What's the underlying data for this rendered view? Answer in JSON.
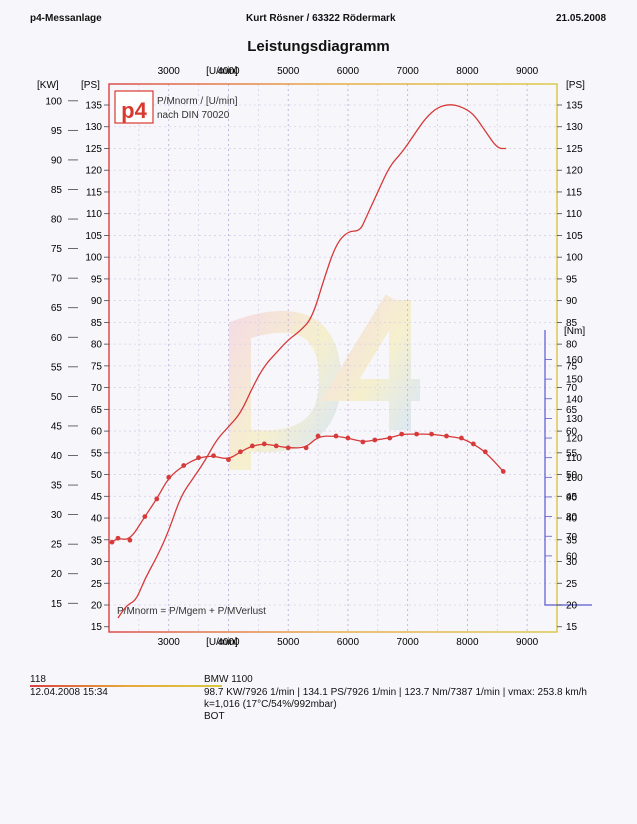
{
  "header": {
    "left": "p4-Messanlage",
    "center": "Kurt Rösner  /  63322 Rödermark",
    "right": "21.05.2008"
  },
  "chart_data": {
    "type": "line",
    "title": "Leistungsdiagramm",
    "x_unit": "[U/min]",
    "x_ticks": [
      3000,
      4000,
      5000,
      6000,
      7000,
      8000,
      9000
    ],
    "xlim": [
      2000,
      9500
    ],
    "kw_unit": "[KW]",
    "kw_ticks": [
      15,
      20,
      25,
      30,
      35,
      40,
      45,
      50,
      55,
      60,
      65,
      70,
      75,
      80,
      85,
      90,
      95,
      100
    ],
    "ps_unit": "[PS]",
    "ps_ticks": [
      15,
      20,
      25,
      30,
      35,
      40,
      45,
      50,
      55,
      60,
      65,
      70,
      75,
      80,
      85,
      90,
      95,
      100,
      105,
      110,
      115,
      120,
      125,
      130,
      135
    ],
    "ylim_ps": [
      15,
      140
    ],
    "nm_unit": "[Nm]",
    "nm_ticks": [
      60,
      70,
      80,
      90,
      100,
      110,
      120,
      130,
      140,
      150,
      160
    ],
    "ylim_nm": [
      35,
      175
    ],
    "legend_lines": [
      "P/Mnorm / [U/min]",
      "nach DIN 70020"
    ],
    "formula": "P/Mnorm = P/Mgem + P/MVerlust",
    "logo": {
      "text": "p4",
      "color": "#d9382e"
    },
    "series": [
      {
        "name": "P/Mnorm",
        "axis": "ps",
        "color": "#d63a3a",
        "x": [
          2150,
          2300,
          2450,
          2600,
          2800,
          3000,
          3200,
          3400,
          3600,
          3800,
          4000,
          4200,
          4400,
          4600,
          4800,
          5000,
          5200,
          5400,
          5600,
          5800,
          6000,
          6200,
          6300,
          6500,
          6700,
          6900,
          7100,
          7300,
          7500,
          7700,
          7900,
          8100,
          8300,
          8500,
          8650
        ],
        "y": [
          17,
          20,
          21,
          26,
          31,
          37,
          45,
          49,
          53,
          58,
          61,
          64,
          70,
          75,
          78,
          81,
          83,
          86,
          95,
          103,
          106,
          106,
          109,
          115,
          121,
          124,
          128,
          132,
          134.5,
          135.2,
          134.6,
          133,
          129,
          125,
          125
        ]
      },
      {
        "name": "Drehmoment",
        "axis": "nm",
        "color": "#d63a3a",
        "x": [
          2050,
          2150,
          2350,
          2600,
          2800,
          3000,
          3250,
          3500,
          3750,
          4000,
          4200,
          4400,
          4600,
          4800,
          5000,
          5300,
          5500,
          5800,
          6000,
          6250,
          6450,
          6700,
          6900,
          7150,
          7400,
          7650,
          7900,
          8100,
          8300,
          8600
        ],
        "y": [
          67,
          69,
          68,
          80,
          89,
          100,
          106,
          110,
          111,
          109,
          113,
          116,
          117,
          116,
          115,
          115,
          121,
          121,
          120,
          118,
          119,
          120,
          122,
          122,
          122,
          121,
          120,
          117,
          113,
          103
        ]
      }
    ],
    "grid": true
  },
  "footer": {
    "run_number": "118",
    "run_date": "12.04.2008  15:34",
    "vehicle": "BMW 1100",
    "results": "98.7 KW/7926 1/min  |  134.1 PS/7926 1/min  |  123.7 Nm/7387 1/min | vmax: 253.8 km/h",
    "conditions": "k=1,016 (17°C/54%/992mbar)",
    "extra": "BOT"
  }
}
